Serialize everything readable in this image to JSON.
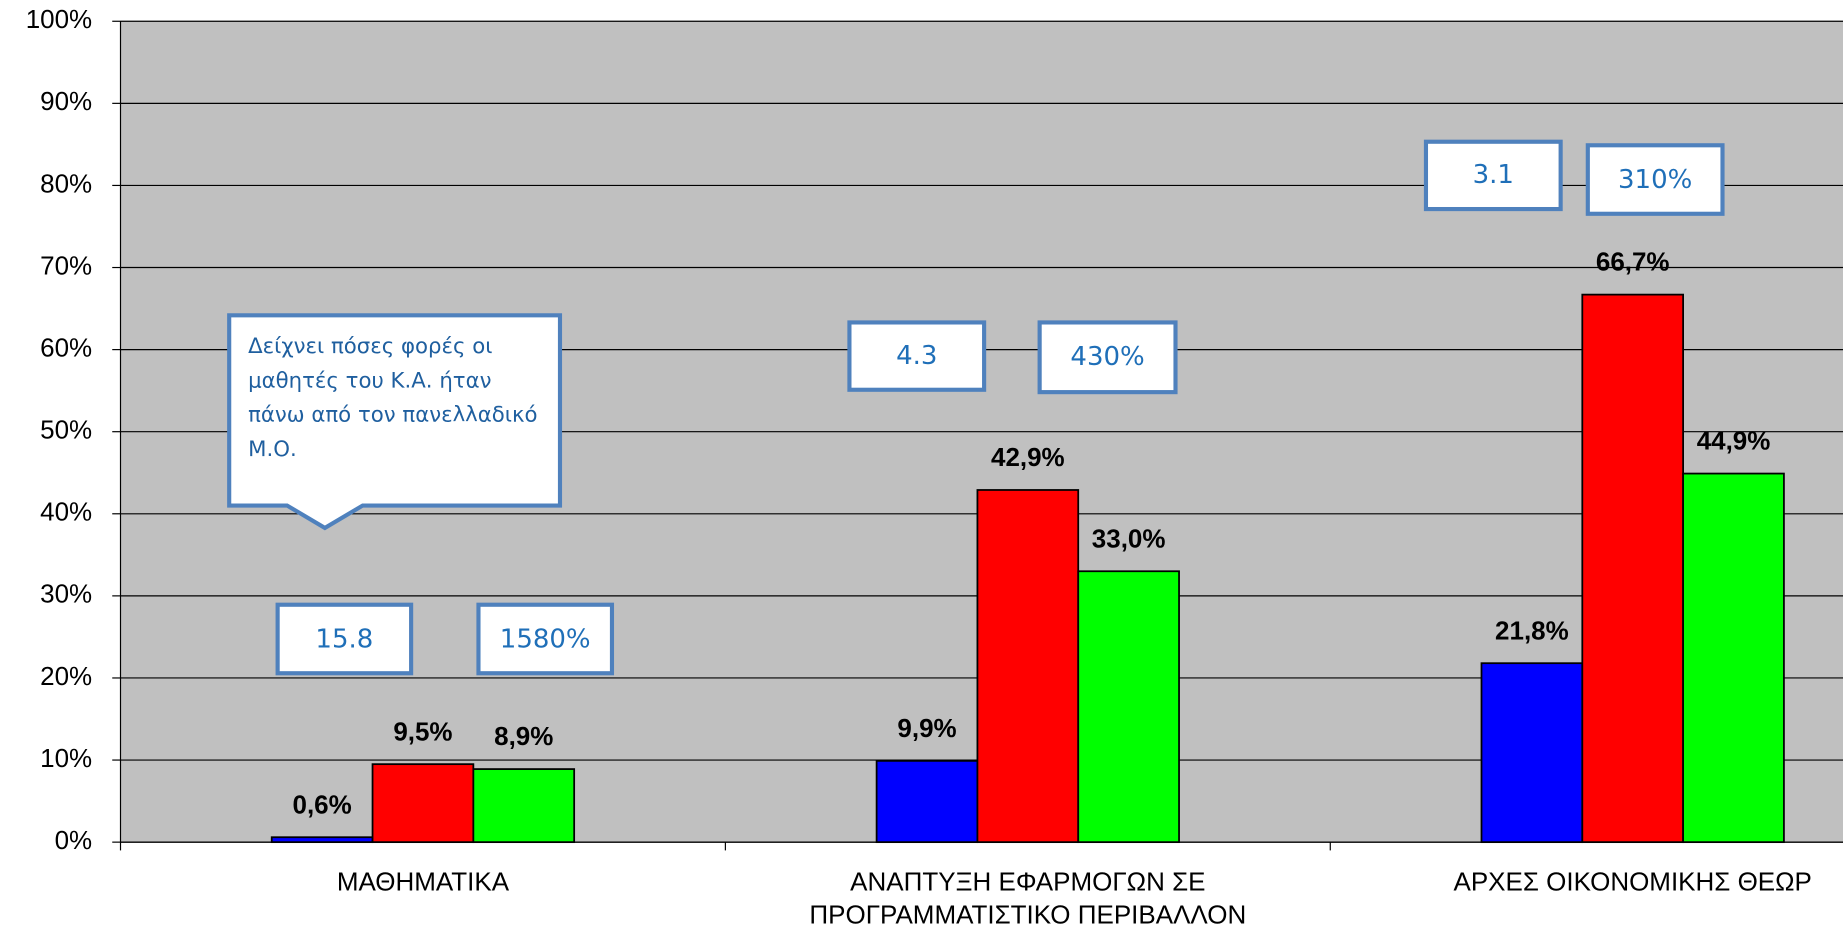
{
  "chart_data": {
    "type": "bar",
    "categories": [
      "ΜΑΘΗΜΑΤΙΚΑ",
      "ΑΝΑΠΤΥΞΗ ΕΦΑΡΜΟΓΩΝ  ΣΕ ΠΡΟΓΡΑΜΜΑΤΙΣΤΙΚΟ ΠΕΡΙΒΑΛΛΟΝ",
      "ΑΡΧΕΣ ΟΙΚΟΝΟΜΙΚΗΣ ΘΕΩΡ"
    ],
    "series": [
      {
        "color": "#0000ff",
        "values": [
          0.6,
          9.9,
          21.8
        ],
        "value_labels": [
          "0,6%",
          "9,9%",
          "21,8%"
        ]
      },
      {
        "color": "#ff0000",
        "values": [
          9.5,
          42.9,
          66.7
        ],
        "value_labels": [
          "9,5%",
          "42,9%",
          "66,7%"
        ]
      },
      {
        "color": "#00ff00",
        "values": [
          8.9,
          33.0,
          44.9
        ],
        "value_labels": [
          "8,9%",
          "33,0%",
          "44,9%"
        ]
      }
    ],
    "ylim": [
      0,
      100
    ],
    "yticks": [
      {
        "value": 0,
        "label": "0%"
      },
      {
        "value": 10,
        "label": "10%"
      },
      {
        "value": 20,
        "label": "20%"
      },
      {
        "value": 30,
        "label": "30%"
      },
      {
        "value": 40,
        "label": "40%"
      },
      {
        "value": 50,
        "label": "50%"
      },
      {
        "value": 60,
        "label": "60%"
      },
      {
        "value": 70,
        "label": "70%"
      },
      {
        "value": 80,
        "label": "80%"
      },
      {
        "value": 90,
        "label": "90%"
      },
      {
        "value": 100,
        "label": "100%"
      }
    ],
    "grid": true,
    "plot_background": "#c0c0c0",
    "annotations": [
      {
        "text": "Δείχνει πόσες φορές οι μαθητές του Κ.Α. ήταν πάνω από τον πανελλαδικό Μ.Ο."
      },
      {
        "text": "15.8"
      },
      {
        "text": "1580%"
      },
      {
        "text": "4.3"
      },
      {
        "text": "430%"
      },
      {
        "text": "3.1"
      },
      {
        "text": "310%"
      }
    ]
  }
}
